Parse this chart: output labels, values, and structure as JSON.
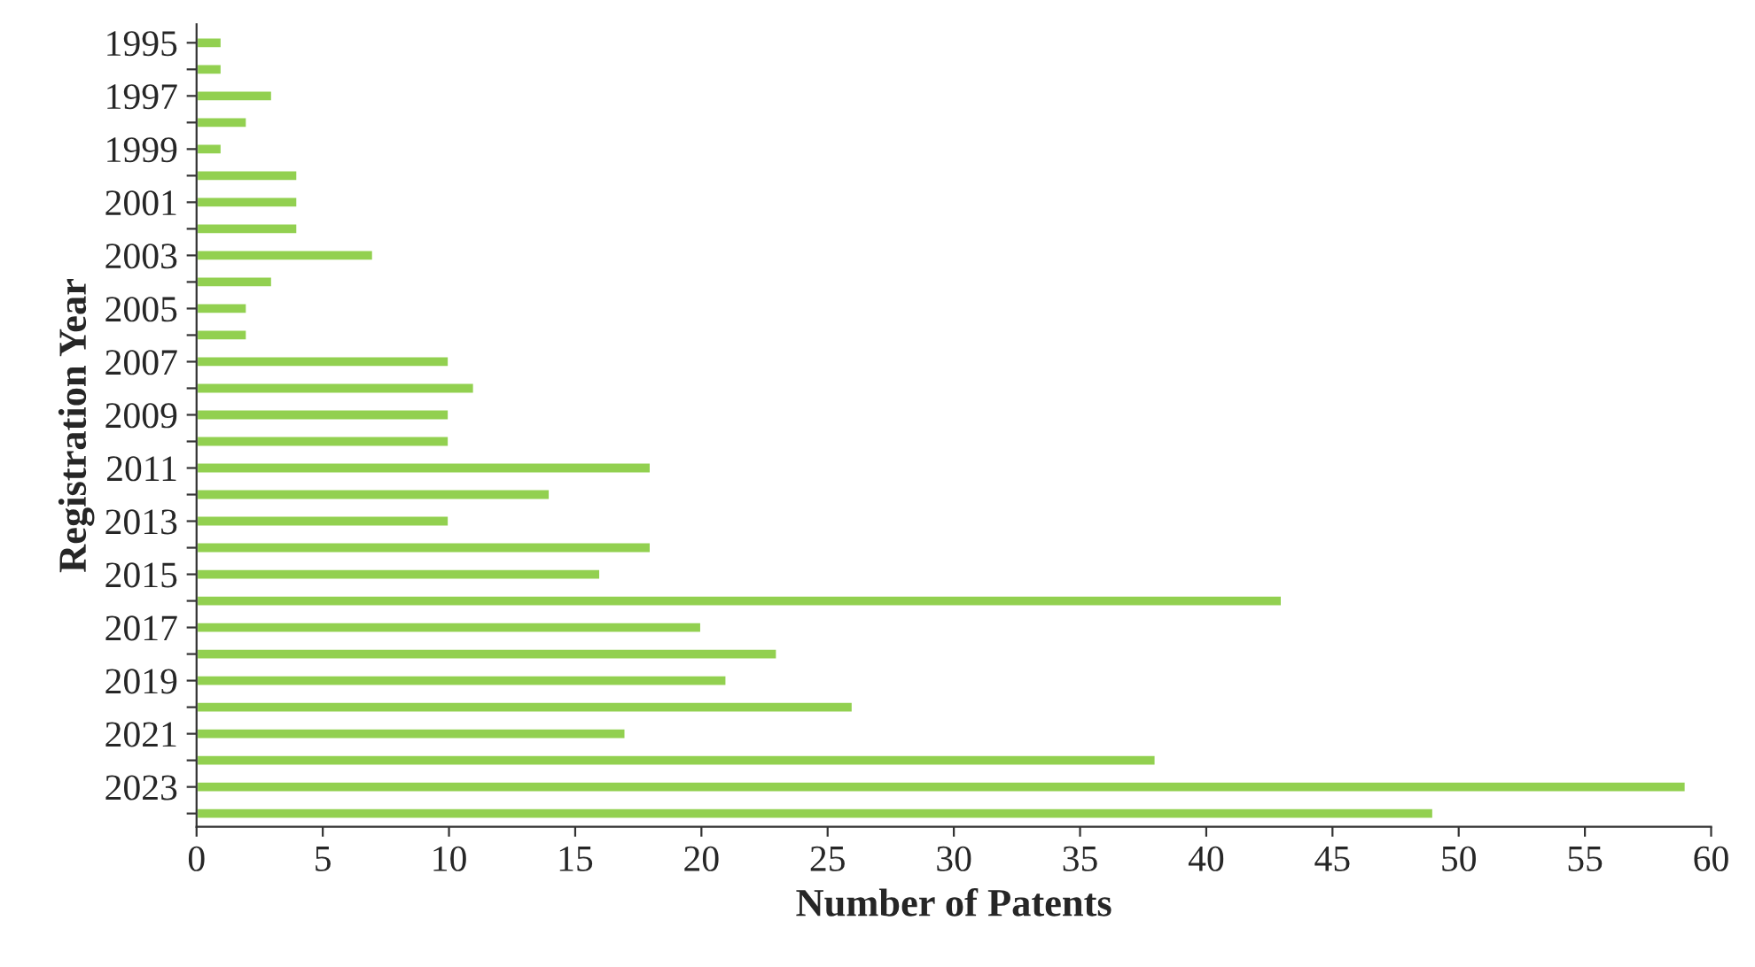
{
  "chart_data": {
    "type": "bar",
    "orientation": "horizontal",
    "xlabel": "Number of Patents",
    "ylabel": "Registration Year",
    "categories": [
      "1995",
      null,
      "1997",
      null,
      "1999",
      null,
      "2001",
      null,
      "2003",
      null,
      "2005",
      null,
      "2007",
      null,
      "2009",
      null,
      "2011",
      null,
      "2013",
      null,
      "2015",
      null,
      "2017",
      null,
      "2019",
      null,
      "2021",
      null,
      "2023",
      null
    ],
    "values": [
      1,
      1,
      3,
      2,
      1,
      4,
      4,
      4,
      7,
      3,
      2,
      2,
      10,
      11,
      10,
      10,
      18,
      14,
      10,
      18,
      16,
      43,
      20,
      23,
      21,
      26,
      17,
      38,
      59,
      49
    ],
    "color": "#92d050",
    "xlim": [
      0,
      60
    ],
    "xticks": [
      0,
      5,
      10,
      15,
      20,
      25,
      30,
      35,
      40,
      45,
      50,
      55,
      60
    ],
    "grid": false,
    "legend": false
  }
}
